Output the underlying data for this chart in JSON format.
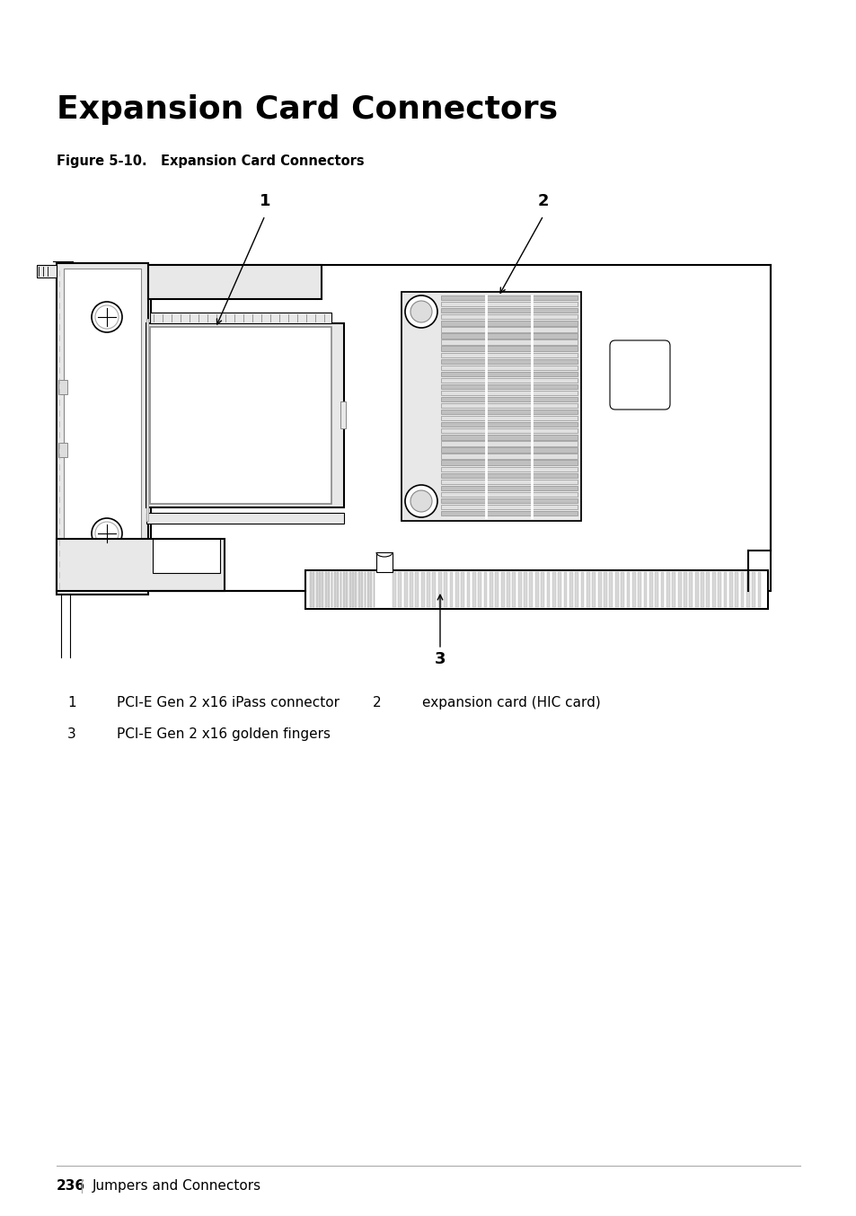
{
  "title": "Expansion Card Connectors",
  "figure_caption": "Figure 5-10.   Expansion Card Connectors",
  "label1": "1",
  "label2": "2",
  "label3": "3",
  "desc1_num": "1",
  "desc1_text": "PCI-E Gen 2 x16 iPass connector",
  "desc2_num": "2",
  "desc2_text": "expansion card (HIC card)",
  "desc3_num": "3",
  "desc3_text": "PCI-E Gen 2 x16 golden fingers",
  "footer_page": "236",
  "footer_text": "Jumpers and Connectors",
  "bg_color": "#ffffff",
  "line_color": "#000000",
  "gray_light": "#e8e8e8",
  "gray_mid": "#cccccc",
  "gray_dark": "#999999"
}
